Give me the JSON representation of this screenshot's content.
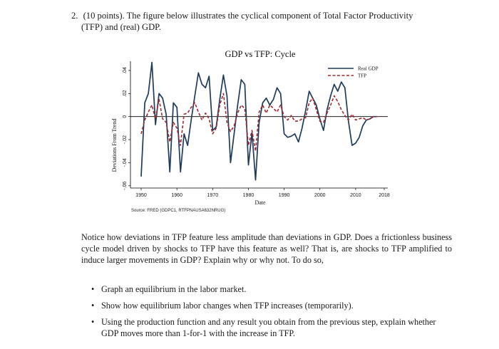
{
  "question": {
    "number": "2.",
    "points": "(10 points).",
    "line1": "The figure below illustrates the cyclical component of Total Factor Productivity",
    "line2": "(TFP) and (real) GDP."
  },
  "chart_data": {
    "type": "line",
    "title": "GDP vs TFP: Cycle",
    "xlabel": "Date",
    "ylabel": "Deviations From Trend",
    "xlim": [
      1947,
      2019
    ],
    "ylim": [
      -0.062,
      0.048
    ],
    "x_ticks": [
      1950,
      1960,
      1970,
      1980,
      1990,
      2000,
      2010,
      2018
    ],
    "y_ticks": [
      -0.06,
      -0.04,
      -0.02,
      0,
      0.02,
      0.04
    ],
    "y_tick_labels": [
      "-.06",
      "-.04",
      "-.02",
      "0",
      ".02",
      ".04"
    ],
    "grid": false,
    "zero_line": true,
    "legend_position": "top-right",
    "source": "Source: FRED (GDPC1, RTFPNAUSA632NRUG)",
    "colors": {
      "gdp": "#1f3b5c",
      "tfp": "#9e2a2f",
      "axis": "#000000"
    },
    "series": [
      {
        "name": "Real GDP",
        "style": "solid",
        "x": [
          1950,
          1951,
          1952,
          1953,
          1954,
          1955,
          1956,
          1957,
          1958,
          1959,
          1960,
          1961,
          1962,
          1963,
          1964,
          1965,
          1966,
          1967,
          1968,
          1969,
          1970,
          1971,
          1972,
          1973,
          1974,
          1975,
          1976,
          1977,
          1978,
          1979,
          1980,
          1981,
          1982,
          1983,
          1984,
          1985,
          1986,
          1987,
          1988,
          1989,
          1990,
          1991,
          1992,
          1993,
          1994,
          1995,
          1996,
          1997,
          1998,
          1999,
          2000,
          2001,
          2002,
          2003,
          2004,
          2005,
          2006,
          2007,
          2008,
          2009,
          2010,
          2011,
          2012,
          2013,
          2014,
          2015,
          2016
        ],
        "values": [
          -0.052,
          0.012,
          0.02,
          0.047,
          -0.007,
          0.02,
          0.016,
          0.002,
          -0.048,
          0.012,
          0.008,
          -0.048,
          -0.015,
          -0.025,
          -0.003,
          0.018,
          0.038,
          0.028,
          0.025,
          0.035,
          -0.012,
          -0.009,
          0.015,
          0.036,
          0.018,
          -0.04,
          -0.015,
          0.01,
          0.032,
          0.028,
          -0.042,
          -0.014,
          -0.055,
          -0.005,
          0.012,
          0.016,
          0.01,
          0.015,
          0.025,
          0.02,
          -0.015,
          -0.018,
          -0.017,
          -0.015,
          -0.022,
          -0.01,
          0.005,
          0.022,
          0.016,
          0.01,
          -0.002,
          -0.012,
          0.006,
          0.018,
          0.028,
          0.022,
          0.03,
          0.025,
          -0.004,
          -0.025,
          -0.023,
          -0.018,
          -0.008,
          -0.003,
          -0.002,
          0.0,
          0.0
        ]
      },
      {
        "name": "TFP",
        "style": "dashed",
        "x": [
          1950,
          1951,
          1952,
          1953,
          1954,
          1955,
          1956,
          1957,
          1958,
          1959,
          1960,
          1961,
          1962,
          1963,
          1964,
          1965,
          1966,
          1967,
          1968,
          1969,
          1970,
          1971,
          1972,
          1973,
          1974,
          1975,
          1976,
          1977,
          1978,
          1979,
          1980,
          1981,
          1982,
          1983,
          1984,
          1985,
          1986,
          1987,
          1988,
          1989,
          1990,
          1991,
          1992,
          1993,
          1994,
          1995,
          1996,
          1997,
          1998,
          1999,
          2000,
          2001,
          2002,
          2003,
          2004,
          2005,
          2006,
          2007,
          2008,
          2009,
          2010,
          2011,
          2012,
          2013,
          2014,
          2015,
          2016
        ],
        "values": [
          -0.015,
          -0.003,
          0.004,
          0.01,
          -0.002,
          0.015,
          -0.002,
          -0.005,
          -0.022,
          -0.005,
          -0.01,
          -0.025,
          0.002,
          0.003,
          0.008,
          0.012,
          0.004,
          -0.003,
          0.003,
          -0.002,
          -0.015,
          -0.01,
          0.01,
          0.02,
          -0.005,
          -0.013,
          -0.008,
          0.003,
          0.01,
          0.007,
          -0.025,
          -0.012,
          -0.03,
          0.004,
          0.01,
          0.003,
          0.01,
          0.007,
          0.004,
          0.01,
          0.0,
          -0.003,
          0.001,
          -0.004,
          -0.004,
          -0.002,
          -0.001,
          0.012,
          0.016,
          0.006,
          -0.004,
          -0.005,
          0.003,
          0.01,
          0.018,
          0.013,
          0.006,
          0.001,
          -0.003,
          0.002,
          -0.003,
          -0.002,
          -0.001,
          -0.003,
          -0.002,
          0.0,
          0.0
        ]
      }
    ]
  },
  "body": {
    "paragraph": "Notice how deviations in TFP feature less amplitude than deviations in GDP. Does a frictionless business cycle model driven by shocks to TFP have this feature as well? That is, are shocks to TFP amplified to induce larger movements in GDP? Explain why or why not. To do so,",
    "bullet_char": "•",
    "bullets": [
      "Graph an equilibrium in the labor market.",
      "Show how equilibrium labor changes when TFP increases (temporarily).",
      "Using the production function and any result you obtain from the previous step, explain whether GDP moves more than 1-for-1 with the increase in TFP."
    ]
  }
}
